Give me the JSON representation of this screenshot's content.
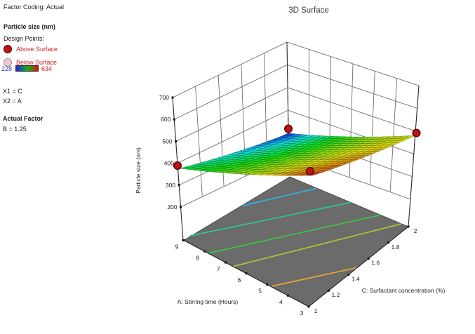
{
  "sidebar": {
    "factor_coding": "Factor Coding: Actual",
    "response_title": "Particle size (nm)",
    "design_points_label": "Design Points:",
    "above_label": "Above Surface",
    "below_label": "Below Surface",
    "scale_min": "228",
    "scale_max": "634",
    "x1": "X1 = C",
    "x2": "X2 = A",
    "actual_factor_label": "Actual Factor",
    "actual_factor_value": "B = 1.25",
    "colors": {
      "above_fill": "#c41114",
      "above_stroke": "#4d0505",
      "below_fill": "#f5c6ce",
      "below_stroke": "#909090",
      "min_label": "#3434ee",
      "max_label": "#dd2020",
      "legend_text": "#cd2026"
    }
  },
  "chart": {
    "title": "3D Surface",
    "z_label": "Particle size (nm)",
    "a_label": "A: Stirring time (Hours)",
    "c_label": "C: Surfactant concentration (%)"
  },
  "chart_data": {
    "type": "surface3d",
    "title": "3D Surface",
    "response": "Particle size (nm)",
    "response_range_observed": [
      228,
      634
    ],
    "z_axis": {
      "label": "Particle size (nm)",
      "min": 200,
      "max": 700,
      "ticks": [
        "700",
        "600",
        "500",
        "400",
        "300",
        "200"
      ],
      "tick_values": [
        700,
        600,
        500,
        400,
        300,
        200
      ]
    },
    "a_axis": {
      "label": "A: Stirring time (Hours)",
      "min": 3,
      "max": 9,
      "ticks": [
        "9",
        "8",
        "7",
        "6",
        "5",
        "4",
        "3"
      ]
    },
    "c_axis": {
      "label": "C: Surfactant concentration (%)",
      "min": 1,
      "max": 2,
      "ticks": [
        "1",
        "1.2",
        "1.4",
        "1.6",
        "1.8",
        "2"
      ]
    },
    "actual_factor": {
      "name": "B",
      "value": 1.25
    },
    "surface_corner_z": {
      "A9_C1": 400,
      "A3_C1": 610,
      "A9_C2": 238,
      "A3_C2": 520
    },
    "colormap": {
      "low": "#0000ff",
      "mid": "#00b400",
      "high": "#ff0000",
      "low_value": 228,
      "high_value": 634
    },
    "design_points": [
      {
        "id": "left",
        "A": 9,
        "C": 1,
        "relation": "above"
      },
      {
        "id": "back",
        "A": 9,
        "C": 2,
        "relation": "above"
      },
      {
        "id": "right",
        "A": 3,
        "C": 2,
        "relation": "above"
      },
      {
        "id": "front",
        "A": 3,
        "C": 1,
        "relation": "above"
      }
    ],
    "floor_contours": [
      {
        "level": 300,
        "color": "#33b1e4"
      },
      {
        "level": 350,
        "color": "#2cc795"
      },
      {
        "level": 420,
        "color": "#3ec43e"
      },
      {
        "level": 480,
        "color": "#a6c930"
      },
      {
        "level": 550,
        "color": "#eca52f"
      }
    ],
    "floor_color": "#6b6b6b",
    "grid_color": "#5f5f5f",
    "axis_color": "#2a2a2a"
  }
}
